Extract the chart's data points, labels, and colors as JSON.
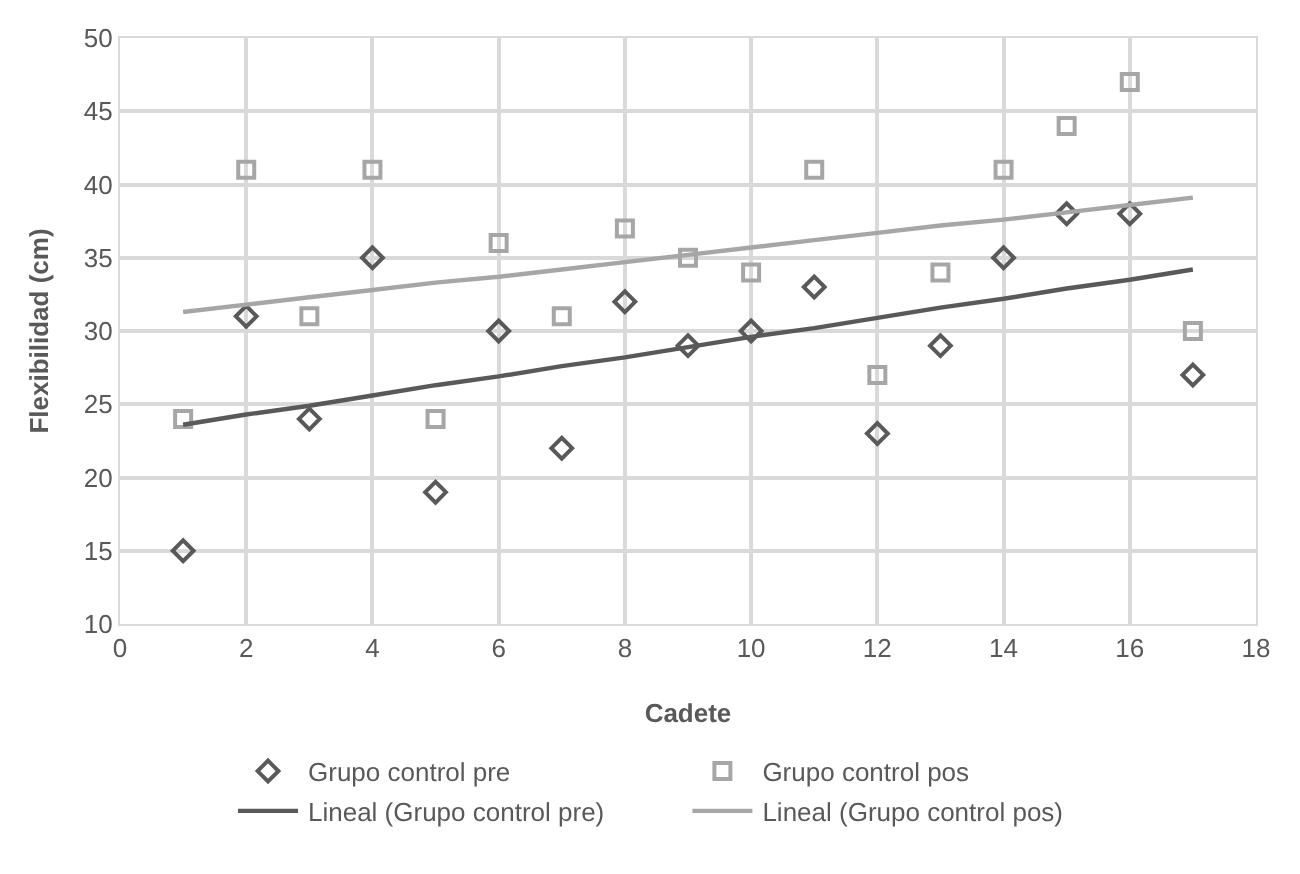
{
  "chart_data": {
    "type": "scatter",
    "xlabel": "Cadete",
    "ylabel": "Flexibilidad (cm)",
    "xlim": [
      0,
      18
    ],
    "xticks": [
      0,
      2,
      4,
      6,
      8,
      10,
      12,
      14,
      16,
      18
    ],
    "ylim": [
      10,
      50
    ],
    "yticks": [
      10,
      15,
      20,
      25,
      30,
      35,
      40,
      45,
      50
    ],
    "grid": true,
    "legend": "bottom",
    "x": [
      1,
      2,
      3,
      4,
      5,
      6,
      7,
      8,
      9,
      10,
      11,
      12,
      13,
      14,
      15,
      16,
      17
    ],
    "series": [
      {
        "name": "Grupo control pre",
        "marker": "diamond",
        "color": "#595959",
        "values": [
          15,
          31,
          24,
          35,
          19,
          30,
          22,
          32,
          29,
          30,
          33,
          23,
          29,
          35,
          38,
          38,
          27
        ]
      },
      {
        "name": "Grupo control pos",
        "marker": "square",
        "color": "#a6a6a6",
        "values": [
          24,
          41,
          31,
          41,
          24,
          36,
          31,
          37,
          35,
          34,
          41,
          27,
          34,
          41,
          44,
          47,
          30
        ]
      },
      {
        "name": "Lineal (Grupo control pre)",
        "type": "line",
        "marker": "none",
        "line_style": "solid",
        "color": "#595959",
        "values": [
          23.6,
          24.3,
          24.9,
          25.6,
          26.3,
          26.9,
          27.6,
          28.2,
          28.9,
          29.6,
          30.2,
          30.9,
          31.6,
          32.2,
          32.9,
          33.5,
          34.2
        ]
      },
      {
        "name": "Lineal (Grupo control pos)",
        "type": "line",
        "marker": "none",
        "line_style": "solid",
        "color": "#a6a6a6",
        "values": [
          31.3,
          31.8,
          32.3,
          32.8,
          33.3,
          33.7,
          34.2,
          34.7,
          35.2,
          35.7,
          36.2,
          36.7,
          37.2,
          37.6,
          38.1,
          38.6,
          39.1
        ]
      }
    ]
  }
}
